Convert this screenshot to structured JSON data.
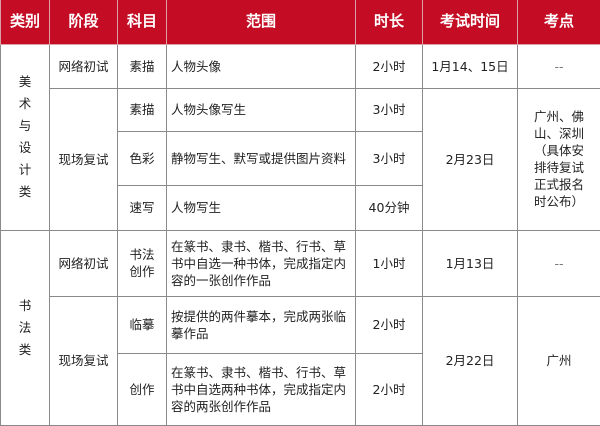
{
  "header_color": "#c40d24",
  "headers": [
    "类别",
    "阶段",
    "科目",
    "范围",
    "时长",
    "考试时间",
    "考点"
  ],
  "groups": [
    {
      "category": "美术与设计类",
      "stages": [
        {
          "stage": "网络初试",
          "date": "1月14、15日",
          "location": "--",
          "rows": [
            {
              "subject": "素描",
              "scope": "人物头像",
              "duration": "2小时"
            }
          ]
        },
        {
          "stage": "现场复试",
          "date": "2月23日",
          "location": "广州、佛山、深圳（具体安排待复试正式报名时公布）",
          "rows": [
            {
              "subject": "素描",
              "scope": "人物头像写生",
              "duration": "3小时"
            },
            {
              "subject": "色彩",
              "scope": "静物写生、默写或提供图片资料",
              "duration": "3小时"
            },
            {
              "subject": "速写",
              "scope": "人物写生",
              "duration": "40分钟"
            }
          ]
        }
      ]
    },
    {
      "category": "书法类",
      "stages": [
        {
          "stage": "网络初试",
          "date": "1月13日",
          "location": "--",
          "rows": [
            {
              "subject": "书法创作",
              "scope": "在篆书、隶书、楷书、行书、草书中自选一种书体，完成指定内容的一张创作作品",
              "duration": "1小时"
            }
          ]
        },
        {
          "stage": "现场复试",
          "date": "2月22日",
          "location": "广州",
          "rows": [
            {
              "subject": "临摹",
              "scope": "按提供的两件摹本，完成两张临摹作品",
              "duration": "2小时"
            },
            {
              "subject": "创作",
              "scope": "在篆书、隶书、楷书、行书、草书中自选两种书体，完成指定内容的两张创作作品",
              "duration": "2小时"
            }
          ]
        }
      ]
    }
  ]
}
